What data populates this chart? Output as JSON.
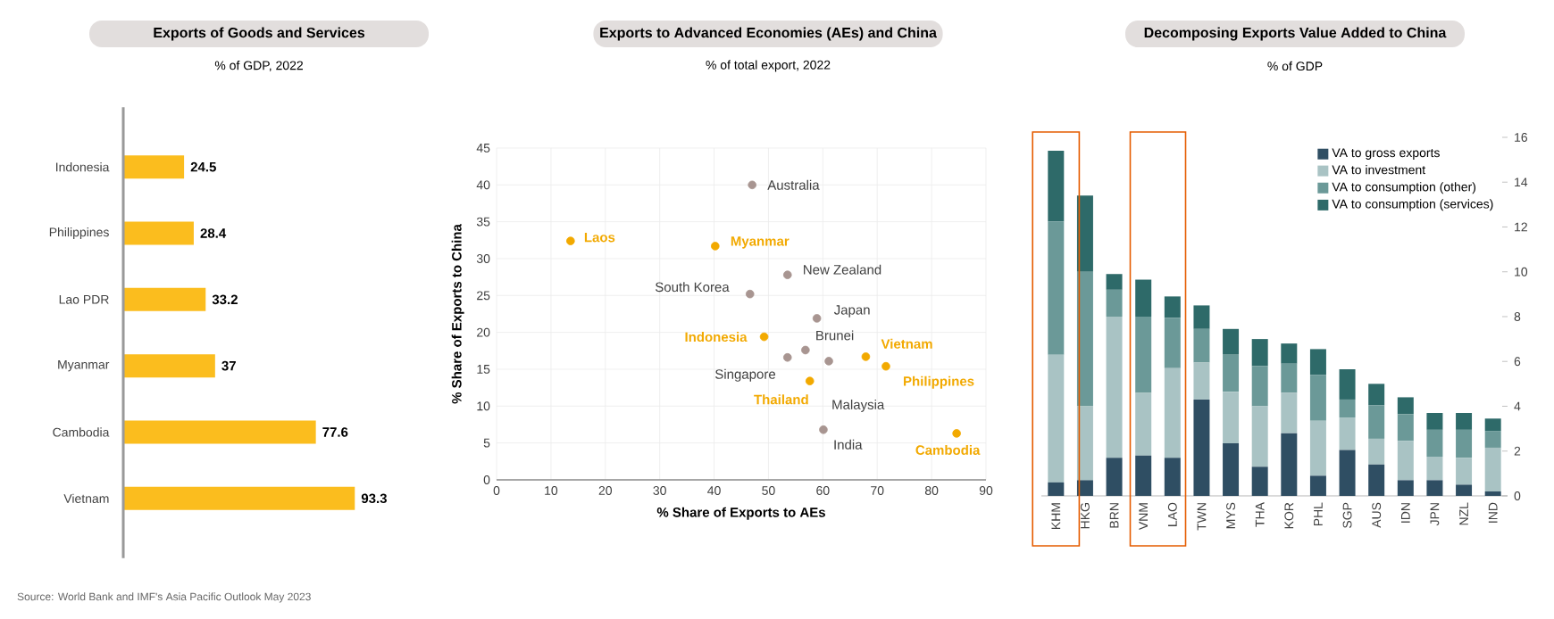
{
  "chart_data": [
    {
      "type": "bar",
      "title": "Exports of Goods and Services",
      "subtitle": "% of GDP, 2022",
      "orientation": "horizontal",
      "categories": [
        "Indonesia",
        "Philippines",
        "Lao PDR",
        "Myanmar",
        "Cambodia",
        "Vietnam"
      ],
      "values": [
        24.5,
        28.4,
        33.2,
        37,
        77.6,
        93.3
      ],
      "color": "#fbbd1e",
      "data_labels": true,
      "annotations": [
        "Source: World Bank and IMF's Asia Pacific Outlook May 2023"
      ]
    },
    {
      "type": "scatter",
      "title": "Exports to Advanced Economies (AEs) and China",
      "subtitle": "% of total export, 2022",
      "xlabel": "% Share of Exports to AEs",
      "ylabel": "% Share of Exports to China",
      "xlim": [
        0,
        90
      ],
      "xticks": [
        0,
        10,
        20,
        30,
        40,
        50,
        60,
        70,
        80,
        90
      ],
      "ylim": [
        0,
        45
      ],
      "yticks": [
        0,
        5,
        10,
        15,
        20,
        25,
        30,
        35,
        40,
        45
      ],
      "grid": true,
      "marker": "circle",
      "series": [
        {
          "color": "#a89591",
          "x": [
            47.0,
            53.5,
            46.6,
            58.9,
            56.8,
            53.5,
            61.1,
            60.1
          ],
          "values": [
            40.0,
            27.8,
            25.2,
            21.9,
            17.6,
            16.6,
            16.1,
            6.8
          ]
        },
        {
          "color": "#f2a900",
          "x": [
            13.6,
            40.2,
            49.2,
            67.9,
            71.6,
            57.6,
            84.6
          ],
          "values": [
            32.4,
            31.7,
            19.4,
            16.7,
            15.4,
            13.4,
            6.3
          ]
        }
      ],
      "annotations": [
        {
          "text": "Australia",
          "x": 47.0,
          "y": 40.0
        },
        {
          "text": "Laos",
          "x": 13.6,
          "y": 32.4
        },
        {
          "text": "Myanmar",
          "x": 40.2,
          "y": 31.7
        },
        {
          "text": "New Zealand",
          "x": 53.5,
          "y": 27.8
        },
        {
          "text": "South Korea",
          "x": 46.6,
          "y": 25.2
        },
        {
          "text": "Japan",
          "x": 58.9,
          "y": 21.9
        },
        {
          "text": "Indonesia",
          "x": 49.2,
          "y": 19.4
        },
        {
          "text": "Brunei",
          "x": 56.8,
          "y": 17.6
        },
        {
          "text": "Singapore",
          "x": 53.5,
          "y": 16.6
        },
        {
          "text": "Malaysia",
          "x": 61.1,
          "y": 16.1
        },
        {
          "text": "Vietnam",
          "x": 67.9,
          "y": 16.7
        },
        {
          "text": "Philippines",
          "x": 71.6,
          "y": 15.4
        },
        {
          "text": "Thailand",
          "x": 57.6,
          "y": 13.4
        },
        {
          "text": "India",
          "x": 60.1,
          "y": 6.8
        },
        {
          "text": "Cambodia",
          "x": 84.6,
          "y": 6.3
        }
      ]
    },
    {
      "type": "bar",
      "title": "Decomposing Exports Value Added to China",
      "subtitle": "% of GDP",
      "stacked": true,
      "legend": "top right",
      "categories": [
        "KHM",
        "HKG",
        "BRN",
        "VNM",
        "LAO",
        "TWN",
        "MYS",
        "THA",
        "KOR",
        "PHL",
        "SGP",
        "AUS",
        "IDN",
        "JPN",
        "NZL",
        "IND"
      ],
      "ylim": [
        0,
        16
      ],
      "yticks": [
        0,
        2,
        4,
        6,
        8,
        10,
        12,
        14,
        16
      ],
      "series": [
        {
          "name": "VA to gross exports",
          "color": "#2f4e63",
          "values": [
            0.6,
            0.7,
            1.7,
            1.8,
            1.7,
            4.3,
            2.35,
            1.3,
            2.8,
            0.9,
            2.05,
            1.4,
            0.7,
            0.7,
            0.5,
            0.2
          ]
        },
        {
          "name": "VA to investment",
          "color": "#a9c3c4",
          "values": [
            5.7,
            3.3,
            6.3,
            2.8,
            4.0,
            1.65,
            2.3,
            2.7,
            1.8,
            2.45,
            1.45,
            1.15,
            1.75,
            1.05,
            1.2,
            1.95
          ]
        },
        {
          "name": "VA to consumption (other)",
          "color": "#6b9998",
          "values": [
            5.95,
            6.0,
            1.2,
            3.4,
            2.25,
            1.5,
            1.65,
            1.8,
            1.3,
            2.05,
            0.8,
            1.5,
            1.2,
            1.2,
            1.25,
            0.75
          ]
        },
        {
          "name": "VA to consumption (services)",
          "color": "#2e6a69",
          "values": [
            3.15,
            3.4,
            0.7,
            1.65,
            0.95,
            1.05,
            1.15,
            1.2,
            0.9,
            1.15,
            1.35,
            0.95,
            0.75,
            0.75,
            0.75,
            0.55
          ]
        }
      ]
    }
  ]
}
